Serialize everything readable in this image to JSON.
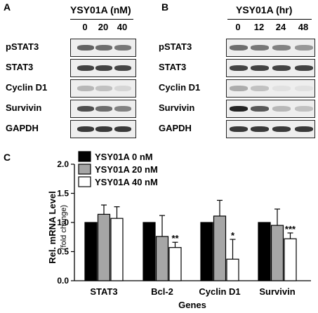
{
  "panel_a": {
    "label": "A",
    "title": "YSY01A (nM)",
    "conditions": [
      "0",
      "20",
      "40"
    ],
    "rows": [
      {
        "label": "pSTAT3",
        "intensity": [
          0.65,
          0.6,
          0.55
        ]
      },
      {
        "label": "STAT3",
        "intensity": [
          0.8,
          0.8,
          0.78
        ]
      },
      {
        "label": "Cyclin D1",
        "intensity": [
          0.25,
          0.2,
          0.1
        ]
      },
      {
        "label": "Survivin",
        "intensity": [
          0.75,
          0.6,
          0.5
        ]
      },
      {
        "label": "GAPDH",
        "intensity": [
          0.85,
          0.85,
          0.85
        ]
      }
    ]
  },
  "panel_b": {
    "label": "B",
    "title": "YSY01A (hr)",
    "conditions": [
      "0",
      "12",
      "24",
      "48"
    ],
    "rows": [
      {
        "label": "pSTAT3",
        "intensity": [
          0.6,
          0.55,
          0.5,
          0.4
        ]
      },
      {
        "label": "STAT3",
        "intensity": [
          0.8,
          0.8,
          0.8,
          0.8
        ]
      },
      {
        "label": "Cyclin D1",
        "intensity": [
          0.3,
          0.2,
          0.05,
          0.05
        ]
      },
      {
        "label": "Survivin",
        "intensity": [
          0.95,
          0.7,
          0.25,
          0.2
        ]
      },
      {
        "label": "GAPDH",
        "intensity": [
          0.85,
          0.85,
          0.85,
          0.85
        ]
      }
    ]
  },
  "panel_c": {
    "label": "C",
    "legend": [
      "YSY01A 0 nM",
      "YSY01A 20 nM",
      "YSY01A 40 nM"
    ]
  },
  "chart_data": {
    "type": "bar",
    "categories": [
      "STAT3",
      "Bcl-2",
      "Cyclin D1",
      "Survivin"
    ],
    "series": [
      {
        "name": "YSY01A 0 nM",
        "values": [
          1.0,
          1.0,
          1.0,
          1.0
        ],
        "errors": [
          0,
          0,
          0,
          0
        ],
        "color": "#000000"
      },
      {
        "name": "YSY01A 20 nM",
        "values": [
          1.14,
          0.76,
          1.11,
          0.95
        ],
        "errors": [
          0.16,
          0.36,
          0.27,
          0.28
        ],
        "color": "#a6a6a6"
      },
      {
        "name": "YSY01A 40 nM",
        "values": [
          1.07,
          0.57,
          0.37,
          0.72
        ],
        "errors": [
          0.2,
          0.09,
          0.34,
          0.1
        ],
        "color": "#ffffff"
      }
    ],
    "significance": [
      "",
      "**",
      "*",
      "***"
    ],
    "xlabel": "Genes",
    "ylabel": "Rel. mRNA Level",
    "ylabel_sub": "(fold change)",
    "ylim": [
      0,
      2.0
    ],
    "yticks": [
      "0.0",
      "0.5",
      "1.0",
      "1.5",
      "2.0"
    ],
    "legend_position": "top-left"
  }
}
